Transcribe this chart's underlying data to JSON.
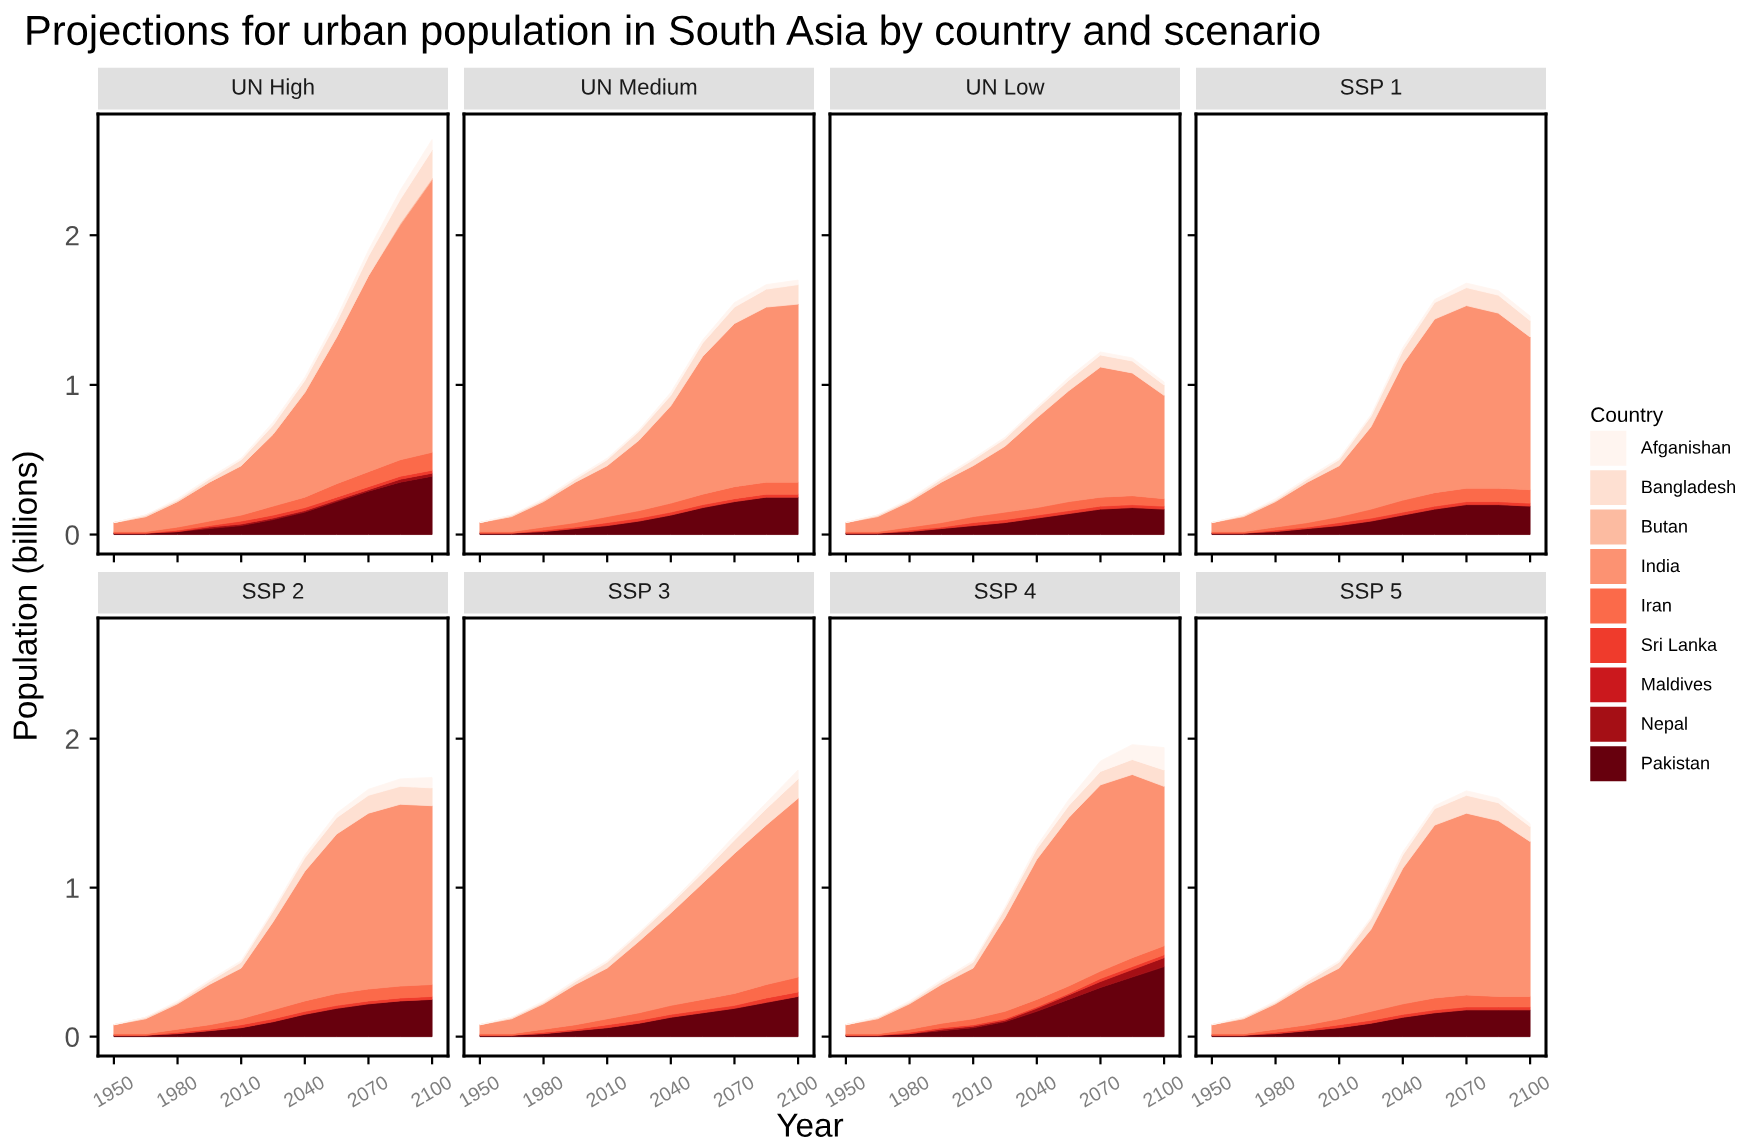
{
  "chart_data": [
    {
      "type": "area",
      "stacked": true,
      "title": "UN High",
      "annotations": [
        "Projections for urban population in South Asia by country and scenario"
      ],
      "ylabel": "Population (billions)",
      "legend_title": "Country",
      "legend": "right",
      "tick_labels": "y",
      "x": [
        1950,
        1965,
        1980,
        1995,
        2010,
        2025,
        2040,
        2055,
        2070,
        2085,
        2100
      ],
      "xlim": [
        1942.5,
        2107.5
      ],
      "xticks": [
        1950,
        1980,
        2010,
        2040,
        2070,
        2100
      ],
      "ylim": [
        -0.13,
        2.81
      ],
      "yticks": [
        0,
        1,
        2
      ],
      "series": [
        {
          "name": "Pakistan",
          "color": "#67000d",
          "values": [
            0.01,
            0.01,
            0.02,
            0.04,
            0.06,
            0.1,
            0.15,
            0.22,
            0.29,
            0.35,
            0.39
          ]
        },
        {
          "name": "Nepal",
          "color": "#a50f15",
          "values": [
            0,
            0,
            0,
            0.01,
            0.01,
            0.01,
            0.01,
            0.01,
            0.01,
            0.02,
            0.02
          ]
        },
        {
          "name": "Maldives",
          "color": "#cb181d",
          "values": [
            null,
            null,
            null,
            null,
            null,
            null,
            null,
            null,
            null,
            null,
            null
          ]
        },
        {
          "name": "Sri Lanka",
          "color": "#ef3b2c",
          "values": [
            0,
            0,
            0.01,
            0.01,
            0.02,
            0.02,
            0.02,
            0.02,
            0.02,
            0.02,
            0.02
          ]
        },
        {
          "name": "Iran",
          "color": "#fb6a4a",
          "values": [
            0.01,
            0.01,
            0.02,
            0.03,
            0.04,
            0.06,
            0.07,
            0.09,
            0.1,
            0.11,
            0.12
          ]
        },
        {
          "name": "India",
          "color": "#fc9272",
          "values": [
            0.06,
            0.1,
            0.17,
            0.26,
            0.33,
            0.48,
            0.7,
            0.98,
            1.31,
            1.57,
            1.82
          ]
        },
        {
          "name": "Butan",
          "color": "#fcbba1",
          "values": [
            0,
            0,
            0,
            0,
            0,
            0,
            0,
            0,
            0,
            0.01,
            0.01
          ]
        },
        {
          "name": "Bangladesh",
          "color": "#fee0d2",
          "values": [
            0,
            0.01,
            0.01,
            0.02,
            0.04,
            0.06,
            0.08,
            0.1,
            0.13,
            0.16,
            0.19
          ]
        },
        {
          "name": "Afganishan",
          "color": "#fff5f0",
          "values": [
            0,
            0,
            0.01,
            0.01,
            0.01,
            0.02,
            0.02,
            0.03,
            0.04,
            0.06,
            0.07
          ]
        }
      ]
    },
    {
      "type": "area",
      "stacked": true,
      "title": "UN Medium",
      "tick_labels": false,
      "x": [
        1950,
        1965,
        1980,
        1995,
        2010,
        2025,
        2040,
        2055,
        2070,
        2085,
        2100
      ],
      "xlim": [
        1942.5,
        2107.5
      ],
      "xticks": [
        1950,
        1980,
        2010,
        2040,
        2070,
        2100
      ],
      "ylim": [
        -0.13,
        2.81
      ],
      "yticks": [
        0,
        1,
        2
      ],
      "series": [
        {
          "color": "#67000d",
          "values": [
            0.01,
            0.01,
            0.02,
            0.04,
            0.06,
            0.09,
            0.13,
            0.18,
            0.22,
            0.25,
            0.25
          ]
        },
        {
          "values": [
            null,
            null,
            null,
            null,
            null,
            null,
            null,
            null,
            null,
            null,
            null
          ]
        },
        {
          "values": [
            null,
            null,
            null,
            null,
            null,
            null,
            null,
            null,
            null,
            null,
            null
          ]
        },
        {
          "color": "#ef3b2c",
          "values": [
            0,
            0,
            0.01,
            0.01,
            0.02,
            0.02,
            0.02,
            0.02,
            0.02,
            0.02,
            0.02
          ]
        },
        {
          "color": "#fb6a4a",
          "values": [
            0.01,
            0.01,
            0.02,
            0.03,
            0.04,
            0.05,
            0.06,
            0.07,
            0.08,
            0.08,
            0.08
          ]
        },
        {
          "color": "#fc9272",
          "values": [
            0.06,
            0.1,
            0.17,
            0.27,
            0.34,
            0.47,
            0.65,
            0.92,
            1.09,
            1.17,
            1.19
          ]
        },
        {
          "values": [
            null,
            null,
            null,
            null,
            null,
            null,
            null,
            null,
            null,
            null,
            null
          ]
        },
        {
          "color": "#fee0d2",
          "values": [
            0,
            0.01,
            0.01,
            0.02,
            0.04,
            0.06,
            0.07,
            0.09,
            0.11,
            0.12,
            0.13
          ]
        },
        {
          "color": "#fff5f0",
          "values": [
            0,
            0,
            0.01,
            0.01,
            0.01,
            0.01,
            0.02,
            0.02,
            0.03,
            0.03,
            0.03
          ]
        }
      ]
    },
    {
      "type": "area",
      "stacked": true,
      "title": "UN Low",
      "tick_labels": false,
      "x": [
        1950,
        1965,
        1980,
        1995,
        2010,
        2025,
        2040,
        2055,
        2070,
        2085,
        2100
      ],
      "xlim": [
        1942.5,
        2107.5
      ],
      "xticks": [
        1950,
        1980,
        2010,
        2040,
        2070,
        2100
      ],
      "ylim": [
        -0.13,
        2.81
      ],
      "yticks": [
        0,
        1,
        2
      ],
      "series": [
        {
          "color": "#67000d",
          "values": [
            0.01,
            0.01,
            0.02,
            0.04,
            0.06,
            0.08,
            0.11,
            0.14,
            0.17,
            0.18,
            0.17
          ]
        },
        {
          "values": [
            null,
            null,
            null,
            null,
            null,
            null,
            null,
            null,
            null,
            null,
            null
          ]
        },
        {
          "values": [
            null,
            null,
            null,
            null,
            null,
            null,
            null,
            null,
            null,
            null,
            null
          ]
        },
        {
          "color": "#ef3b2c",
          "values": [
            0,
            0,
            0.01,
            0.01,
            0.02,
            0.02,
            0.02,
            0.02,
            0.02,
            0.02,
            0.02
          ]
        },
        {
          "color": "#fb6a4a",
          "values": [
            0.01,
            0.01,
            0.02,
            0.03,
            0.04,
            0.05,
            0.05,
            0.06,
            0.06,
            0.06,
            0.05
          ]
        },
        {
          "color": "#fc9272",
          "values": [
            0.06,
            0.1,
            0.17,
            0.27,
            0.34,
            0.44,
            0.6,
            0.74,
            0.87,
            0.82,
            0.69
          ]
        },
        {
          "values": [
            null,
            null,
            null,
            null,
            null,
            null,
            null,
            null,
            null,
            null,
            null
          ]
        },
        {
          "color": "#fee0d2",
          "values": [
            0,
            0.01,
            0.01,
            0.02,
            0.04,
            0.05,
            0.06,
            0.07,
            0.08,
            0.08,
            0.07
          ]
        },
        {
          "color": "#fff5f0",
          "values": [
            0,
            0,
            0.01,
            0.01,
            0.01,
            0.01,
            0.01,
            0.02,
            0.02,
            0.02,
            0.02
          ]
        }
      ]
    },
    {
      "type": "area",
      "stacked": true,
      "title": "SSP 1",
      "tick_labels": false,
      "x": [
        1950,
        1965,
        1980,
        1995,
        2010,
        2025,
        2040,
        2055,
        2070,
        2085,
        2100
      ],
      "xlim": [
        1942.5,
        2107.5
      ],
      "xticks": [
        1950,
        1980,
        2010,
        2040,
        2070,
        2100
      ],
      "ylim": [
        -0.13,
        2.81
      ],
      "yticks": [
        0,
        1,
        2
      ],
      "series": [
        {
          "color": "#67000d",
          "values": [
            0.01,
            0.01,
            0.02,
            0.04,
            0.06,
            0.09,
            0.13,
            0.17,
            0.2,
            0.2,
            0.19
          ]
        },
        {
          "values": [
            null,
            null,
            null,
            null,
            null,
            null,
            null,
            null,
            null,
            null,
            null
          ]
        },
        {
          "values": [
            null,
            null,
            null,
            null,
            null,
            null,
            null,
            null,
            null,
            null,
            null
          ]
        },
        {
          "color": "#ef3b2c",
          "values": [
            0,
            0,
            0.01,
            0.01,
            0.02,
            0.02,
            0.02,
            0.02,
            0.02,
            0.02,
            0.02
          ]
        },
        {
          "color": "#fb6a4a",
          "values": [
            0.01,
            0.01,
            0.02,
            0.03,
            0.04,
            0.06,
            0.08,
            0.09,
            0.09,
            0.09,
            0.09
          ]
        },
        {
          "color": "#fc9272",
          "values": [
            0.06,
            0.1,
            0.17,
            0.27,
            0.34,
            0.55,
            0.91,
            1.16,
            1.22,
            1.17,
            1.02
          ]
        },
        {
          "values": [
            null,
            null,
            null,
            null,
            null,
            null,
            null,
            null,
            null,
            null,
            null
          ]
        },
        {
          "color": "#fee0d2",
          "values": [
            0,
            0.01,
            0.01,
            0.02,
            0.04,
            0.07,
            0.09,
            0.11,
            0.12,
            0.12,
            0.11
          ]
        },
        {
          "color": "#fff5f0",
          "values": [
            0,
            0,
            0.01,
            0.01,
            0.01,
            0.01,
            0.02,
            0.02,
            0.03,
            0.03,
            0.03
          ]
        }
      ]
    },
    {
      "type": "area",
      "stacked": true,
      "title": "SSP 2",
      "x": [
        1950,
        1965,
        1980,
        1995,
        2010,
        2025,
        2040,
        2055,
        2070,
        2085,
        2100
      ],
      "xlim": [
        1942.5,
        2107.5
      ],
      "xticks": [
        1950,
        1980,
        2010,
        2040,
        2070,
        2100
      ],
      "ylim": [
        -0.13,
        2.81
      ],
      "yticks": [
        0,
        1,
        2
      ],
      "series": [
        {
          "color": "#67000d",
          "values": [
            0.01,
            0.01,
            0.02,
            0.04,
            0.06,
            0.1,
            0.15,
            0.19,
            0.22,
            0.24,
            0.25
          ]
        },
        {
          "values": [
            null,
            null,
            null,
            null,
            null,
            null,
            null,
            null,
            null,
            null,
            null
          ]
        },
        {
          "values": [
            null,
            null,
            null,
            null,
            null,
            null,
            null,
            null,
            null,
            null,
            null
          ]
        },
        {
          "color": "#ef3b2c",
          "values": [
            0,
            0,
            0.01,
            0.01,
            0.02,
            0.02,
            0.02,
            0.02,
            0.02,
            0.02,
            0.02
          ]
        },
        {
          "color": "#fb6a4a",
          "values": [
            0.01,
            0.01,
            0.02,
            0.03,
            0.04,
            0.06,
            0.07,
            0.08,
            0.08,
            0.08,
            0.08
          ]
        },
        {
          "color": "#fc9272",
          "values": [
            0.06,
            0.1,
            0.17,
            0.27,
            0.34,
            0.59,
            0.87,
            1.07,
            1.18,
            1.22,
            1.2
          ]
        },
        {
          "values": [
            null,
            null,
            null,
            null,
            null,
            null,
            null,
            null,
            null,
            null,
            null
          ]
        },
        {
          "color": "#fee0d2",
          "values": [
            0,
            0.01,
            0.01,
            0.02,
            0.04,
            0.07,
            0.09,
            0.11,
            0.12,
            0.12,
            0.12
          ]
        },
        {
          "color": "#fff5f0",
          "values": [
            0,
            0,
            0.01,
            0.01,
            0.01,
            0.01,
            0.02,
            0.03,
            0.04,
            0.05,
            0.07
          ]
        }
      ]
    },
    {
      "type": "area",
      "stacked": true,
      "title": "SSP 3",
      "xlabel": "Year",
      "tick_labels": "x",
      "x": [
        1950,
        1965,
        1980,
        1995,
        2010,
        2025,
        2040,
        2055,
        2070,
        2085,
        2100
      ],
      "xlim": [
        1942.5,
        2107.5
      ],
      "xticks": [
        1950,
        1980,
        2010,
        2040,
        2070,
        2100
      ],
      "ylim": [
        -0.13,
        2.81
      ],
      "yticks": [
        0,
        1,
        2
      ],
      "series": [
        {
          "color": "#67000d",
          "values": [
            0.01,
            0.01,
            0.02,
            0.04,
            0.06,
            0.09,
            0.13,
            0.16,
            0.19,
            0.23,
            0.27
          ]
        },
        {
          "values": [
            null,
            null,
            null,
            null,
            null,
            null,
            null,
            null,
            null,
            null,
            null
          ]
        },
        {
          "values": [
            null,
            null,
            null,
            null,
            null,
            null,
            null,
            null,
            null,
            null,
            null
          ]
        },
        {
          "color": "#ef3b2c",
          "values": [
            0,
            0,
            0.01,
            0.01,
            0.02,
            0.02,
            0.02,
            0.02,
            0.02,
            0.03,
            0.03
          ]
        },
        {
          "color": "#fb6a4a",
          "values": [
            0.01,
            0.01,
            0.02,
            0.03,
            0.04,
            0.05,
            0.06,
            0.07,
            0.08,
            0.09,
            0.1
          ]
        },
        {
          "color": "#fc9272",
          "values": [
            0.06,
            0.1,
            0.17,
            0.27,
            0.34,
            0.48,
            0.62,
            0.78,
            0.94,
            1.07,
            1.2
          ]
        },
        {
          "values": [
            null,
            null,
            null,
            null,
            null,
            null,
            null,
            null,
            null,
            null,
            null
          ]
        },
        {
          "color": "#fee0d2",
          "values": [
            0,
            0.01,
            0.01,
            0.02,
            0.04,
            0.05,
            0.06,
            0.07,
            0.09,
            0.11,
            0.13
          ]
        },
        {
          "color": "#fff5f0",
          "values": [
            0,
            0,
            0.01,
            0.01,
            0.01,
            0.01,
            0.01,
            0.02,
            0.03,
            0.04,
            0.06
          ]
        }
      ]
    },
    {
      "type": "area",
      "stacked": true,
      "title": "SSP 4",
      "tick_labels": "x",
      "x": [
        1950,
        1965,
        1980,
        1995,
        2010,
        2025,
        2040,
        2055,
        2070,
        2085,
        2100
      ],
      "xlim": [
        1942.5,
        2107.5
      ],
      "xticks": [
        1950,
        1980,
        2010,
        2040,
        2070,
        2100
      ],
      "ylim": [
        -0.13,
        2.81
      ],
      "yticks": [
        0,
        1,
        2
      ],
      "series": [
        {
          "color": "#67000d",
          "values": [
            0.01,
            0.01,
            0.02,
            0.04,
            0.06,
            0.1,
            0.17,
            0.25,
            0.33,
            0.4,
            0.47
          ]
        },
        {
          "color": "#a50f15",
          "values": [
            0,
            0,
            0,
            0.01,
            0.01,
            0.01,
            0.02,
            0.03,
            0.04,
            0.05,
            0.06
          ]
        },
        {
          "values": [
            null,
            null,
            null,
            null,
            null,
            null,
            null,
            null,
            null,
            null,
            null
          ]
        },
        {
          "color": "#ef3b2c",
          "values": [
            0,
            0,
            0.01,
            0.01,
            0.01,
            0.01,
            0.01,
            0.01,
            0.02,
            0.02,
            0.02
          ]
        },
        {
          "color": "#fb6a4a",
          "values": [
            0.01,
            0.01,
            0.02,
            0.03,
            0.04,
            0.05,
            0.05,
            0.05,
            0.05,
            0.06,
            0.06
          ]
        },
        {
          "color": "#fc9272",
          "values": [
            0.06,
            0.1,
            0.17,
            0.26,
            0.34,
            0.63,
            0.94,
            1.13,
            1.25,
            1.23,
            1.07
          ]
        },
        {
          "values": [
            null,
            null,
            null,
            null,
            null,
            null,
            null,
            null,
            null,
            null,
            null
          ]
        },
        {
          "color": "#fee0d2",
          "values": [
            0,
            0.01,
            0.01,
            0.02,
            0.04,
            0.06,
            0.07,
            0.08,
            0.09,
            0.1,
            0.11
          ]
        },
        {
          "color": "#fff5f0",
          "values": [
            0,
            0,
            0.01,
            0.01,
            0.01,
            0.01,
            0.02,
            0.04,
            0.07,
            0.1,
            0.15
          ]
        }
      ]
    },
    {
      "type": "area",
      "stacked": true,
      "title": "SSP 5",
      "tick_labels": "x",
      "x": [
        1950,
        1965,
        1980,
        1995,
        2010,
        2025,
        2040,
        2055,
        2070,
        2085,
        2100
      ],
      "xlim": [
        1942.5,
        2107.5
      ],
      "xticks": [
        1950,
        1980,
        2010,
        2040,
        2070,
        2100
      ],
      "ylim": [
        -0.13,
        2.81
      ],
      "yticks": [
        0,
        1,
        2
      ],
      "series": [
        {
          "color": "#67000d",
          "values": [
            0.01,
            0.01,
            0.02,
            0.04,
            0.06,
            0.09,
            0.13,
            0.16,
            0.18,
            0.18,
            0.18
          ]
        },
        {
          "values": [
            null,
            null,
            null,
            null,
            null,
            null,
            null,
            null,
            null,
            null,
            null
          ]
        },
        {
          "values": [
            null,
            null,
            null,
            null,
            null,
            null,
            null,
            null,
            null,
            null,
            null
          ]
        },
        {
          "color": "#ef3b2c",
          "values": [
            0,
            0,
            0.01,
            0.01,
            0.02,
            0.02,
            0.02,
            0.02,
            0.02,
            0.02,
            0.02
          ]
        },
        {
          "color": "#fb6a4a",
          "values": [
            0.01,
            0.01,
            0.02,
            0.03,
            0.04,
            0.06,
            0.07,
            0.08,
            0.08,
            0.07,
            0.07
          ]
        },
        {
          "color": "#fc9272",
          "values": [
            0.06,
            0.1,
            0.17,
            0.27,
            0.34,
            0.55,
            0.91,
            1.16,
            1.22,
            1.18,
            1.04
          ]
        },
        {
          "values": [
            null,
            null,
            null,
            null,
            null,
            null,
            null,
            null,
            null,
            null,
            null
          ]
        },
        {
          "color": "#fee0d2",
          "values": [
            0,
            0.01,
            0.01,
            0.02,
            0.04,
            0.07,
            0.09,
            0.11,
            0.12,
            0.12,
            0.1
          ]
        },
        {
          "color": "#fff5f0",
          "values": [
            0,
            0,
            0.01,
            0.01,
            0.01,
            0.01,
            0.02,
            0.02,
            0.03,
            0.03,
            0.02
          ]
        }
      ]
    }
  ]
}
